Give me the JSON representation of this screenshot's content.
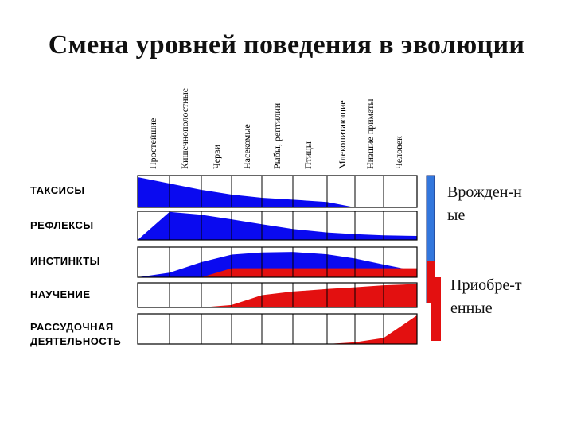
{
  "title": "Смена уровней поведения в эволюции",
  "columns": [
    "Простейшие",
    "Кишечнополостные",
    "Черви",
    "Насекомые",
    "Рыбы, рептилии",
    "Птицы",
    "Млекопитающие",
    "Низшие приматы",
    "Человек"
  ],
  "rows": [
    {
      "label": "ТАКСИСЫ",
      "levels": [
        0.95,
        0.75,
        0.55,
        0.4,
        0.3,
        0.24,
        0.17,
        0,
        0,
        0
      ],
      "red_levels": []
    },
    {
      "label": "РЕФЛЕКСЫ",
      "levels": [
        0,
        0.98,
        0.88,
        0.72,
        0.55,
        0.38,
        0.26,
        0.2,
        0.16,
        0.14
      ],
      "red_levels": []
    },
    {
      "label": "ИНСТИНКТЫ",
      "levels": [
        0,
        0.15,
        0.5,
        0.75,
        0.82,
        0.84,
        0.76,
        0.62,
        0.42,
        0.2
      ],
      "red_levels": [
        0,
        0,
        0,
        0.3,
        0.3,
        0.3,
        0.3,
        0.3,
        0.3,
        0.3
      ]
    },
    {
      "label": "НАУЧЕНИЕ",
      "levels": [],
      "red_levels": [
        0,
        0,
        0,
        0.1,
        0.5,
        0.65,
        0.75,
        0.82,
        0.9,
        0.95
      ]
    },
    {
      "label": "РАССУДОЧНАЯ\nДЕЯТЕЛЬНОСТЬ",
      "levels": [],
      "red_levels": [
        0,
        0,
        0,
        0,
        0,
        0,
        0,
        0.06,
        0.2,
        0.95
      ]
    }
  ],
  "legend": {
    "innate": "Врожден-н\nые",
    "acquired": "Приобре-т\nенные"
  },
  "colors": {
    "blue": "#0a0af0",
    "red": "#e31010",
    "legend_blue": "#3377dd",
    "grid": "#000000"
  }
}
